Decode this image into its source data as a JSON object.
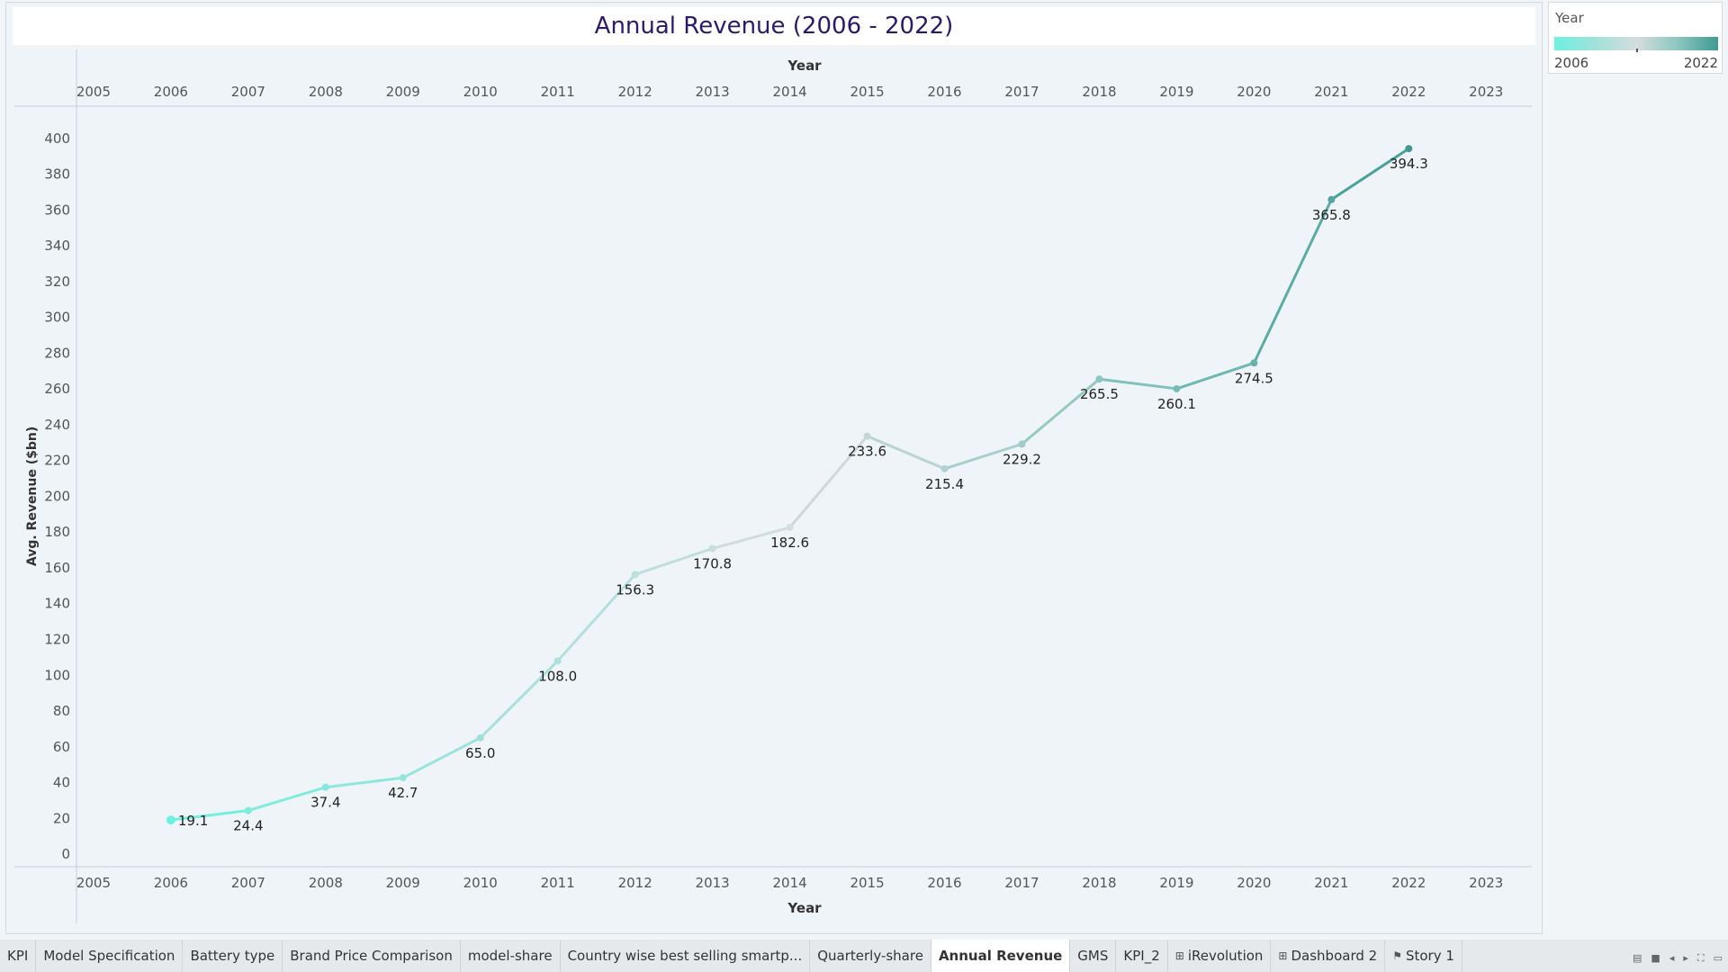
{
  "chart_data": {
    "type": "line",
    "title": "Annual Revenue (2006 - 2022)",
    "xlabel": "Year",
    "ylabel": "Avg. Revenue ($bn)",
    "x": [
      2006,
      2007,
      2008,
      2009,
      2010,
      2011,
      2012,
      2013,
      2014,
      2015,
      2016,
      2017,
      2018,
      2019,
      2020,
      2021,
      2022
    ],
    "values": [
      19.1,
      24.4,
      37.4,
      42.7,
      65.0,
      108.0,
      156.3,
      170.8,
      182.6,
      233.6,
      215.4,
      229.2,
      265.5,
      260.1,
      274.5,
      365.8,
      394.3
    ],
    "data_labels": [
      "19.1",
      "24.4",
      "37.4",
      "42.7",
      "65.0",
      "108.0",
      "156.3",
      "170.8",
      "182.6",
      "233.6",
      "215.4",
      "229.2",
      "265.5",
      "260.1",
      "274.5",
      "365.8",
      "394.3"
    ],
    "xticks": [
      "2005",
      "2006",
      "2007",
      "2008",
      "2009",
      "2010",
      "2011",
      "2012",
      "2013",
      "2014",
      "2015",
      "2016",
      "2017",
      "2018",
      "2019",
      "2020",
      "2021",
      "2022",
      "2023"
    ],
    "yticks": [
      0,
      20,
      40,
      60,
      80,
      100,
      120,
      140,
      160,
      180,
      200,
      220,
      240,
      260,
      280,
      300,
      320,
      340,
      360,
      380,
      400
    ],
    "xlim": [
      2004.78,
      2023.59
    ],
    "ylim": [
      -7,
      418
    ],
    "grid": false,
    "color_range": [
      "#6ef0e0",
      "#3f9b92"
    ]
  },
  "legend": {
    "title": "Year",
    "min_label": "2006",
    "max_label": "2022"
  },
  "tabs": [
    {
      "label": "KPI",
      "icon": "",
      "active": false
    },
    {
      "label": "Model Specification",
      "icon": "",
      "active": false
    },
    {
      "label": "Battery type",
      "icon": "",
      "active": false
    },
    {
      "label": "Brand Price Comparison",
      "icon": "",
      "active": false
    },
    {
      "label": "model-share",
      "icon": "",
      "active": false
    },
    {
      "label": "Country wise best selling smartp...",
      "icon": "",
      "active": false
    },
    {
      "label": "Quarterly-share",
      "icon": "",
      "active": false
    },
    {
      "label": "Annual Revenue",
      "icon": "",
      "active": true
    },
    {
      "label": "GMS",
      "icon": "",
      "active": false
    },
    {
      "label": "KPI_2",
      "icon": "",
      "active": false
    },
    {
      "label": "iRevolution",
      "icon": "dashboard-icon",
      "active": false
    },
    {
      "label": "Dashboard 2",
      "icon": "dashboard-icon",
      "active": false
    },
    {
      "label": "Story 1",
      "icon": "story-icon",
      "active": false
    }
  ],
  "nav_controls": [
    "sheet-sorter-icon",
    "filmstrip-icon",
    "prev-sheet-icon",
    "next-sheet-icon",
    "fullscreen-icon",
    "presentation-icon"
  ]
}
